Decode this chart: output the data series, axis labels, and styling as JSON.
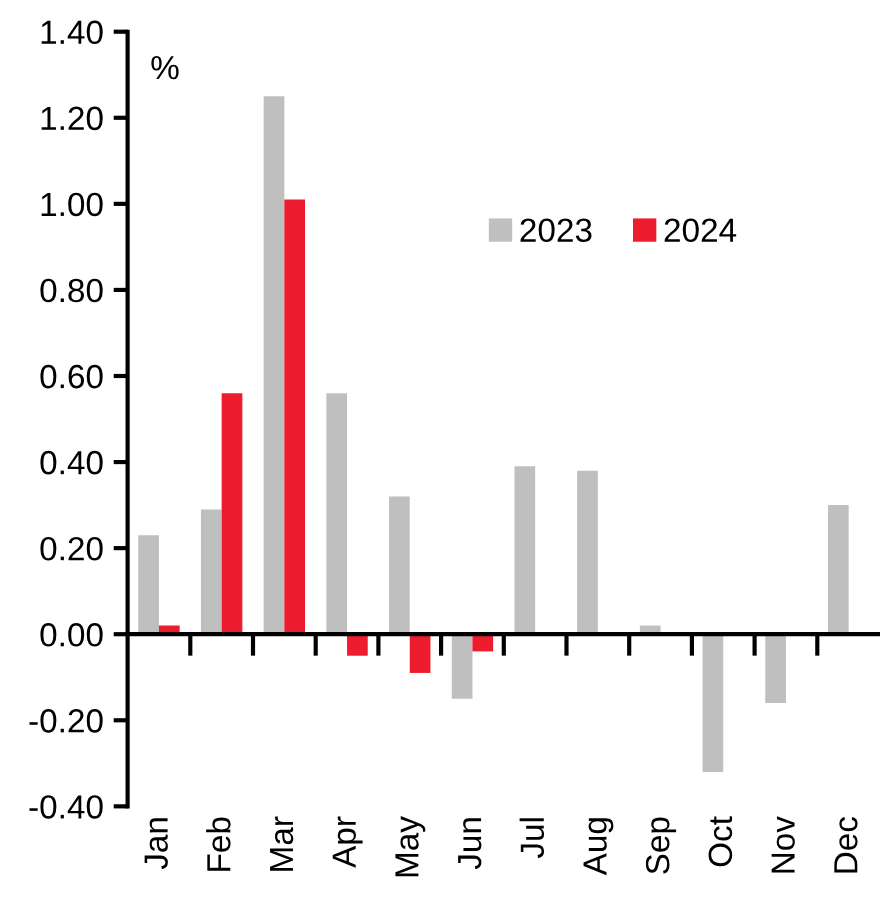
{
  "chart_data": {
    "type": "bar",
    "ylabel": "%",
    "categories": [
      "Jan",
      "Feb",
      "Mar",
      "Apr",
      "May",
      "Jun",
      "Jul",
      "Aug",
      "Sep",
      "Oct",
      "Nov",
      "Dec"
    ],
    "series": [
      {
        "name": "2023",
        "color": "#bfbfbf",
        "values": [
          0.23,
          0.29,
          1.25,
          0.56,
          0.32,
          -0.15,
          0.39,
          0.38,
          0.02,
          -0.32,
          -0.16,
          0.3
        ]
      },
      {
        "name": "2024",
        "color": "#ed1c2e",
        "values": [
          0.02,
          0.56,
          1.01,
          -0.05,
          -0.09,
          -0.04,
          null,
          null,
          null,
          null,
          null,
          null
        ]
      }
    ],
    "ylim": [
      -0.4,
      1.4
    ],
    "yticks": [
      {
        "value": -0.4,
        "label": "-0.40"
      },
      {
        "value": -0.2,
        "label": "-0.20"
      },
      {
        "value": 0,
        "label": "0.00"
      },
      {
        "value": 0.2,
        "label": "0.20"
      },
      {
        "value": 0.4,
        "label": "0.40"
      },
      {
        "value": 0.6,
        "label": "0.60"
      },
      {
        "value": 0.8,
        "label": "0.80"
      },
      {
        "value": 1.0,
        "label": "1.00"
      },
      {
        "value": 1.2,
        "label": "1.20"
      },
      {
        "value": 1.4,
        "label": "1.40"
      }
    ],
    "legend": "right"
  }
}
